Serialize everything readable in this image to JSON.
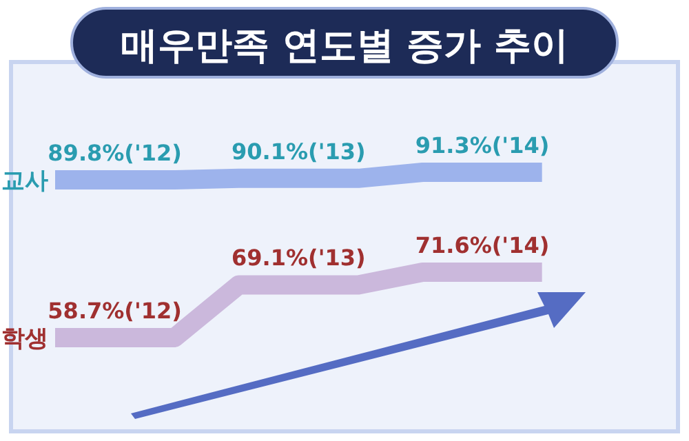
{
  "chart_data": {
    "type": "step",
    "title": "매우만족  연도별 증가 추이",
    "categories": [
      null,
      null,
      null
    ],
    "series": [
      {
        "name": "교사",
        "color": "#9db3ec",
        "values": [
          89.8,
          90.1,
          91.3
        ],
        "value_labels": [
          "89.8%('12)",
          "90.1%('13)",
          "91.3%('14)"
        ]
      },
      {
        "name": "학생",
        "color": "#cbb8dc",
        "values": [
          58.7,
          69.1,
          71.6
        ],
        "value_labels": [
          "58.7%('12)",
          "69.1%('13)",
          "71.6%('14)"
        ]
      }
    ]
  }
}
